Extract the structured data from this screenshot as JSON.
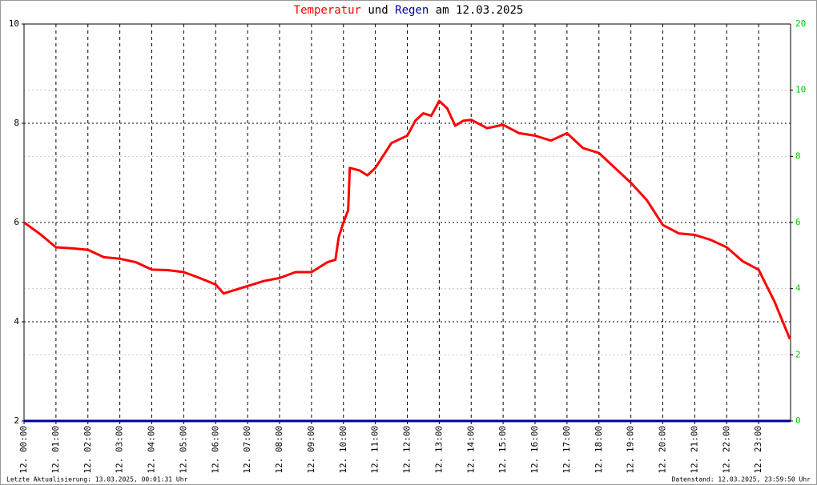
{
  "chart_data": {
    "type": "line",
    "title_parts": [
      "und",
      "am 12.03.2025"
    ],
    "footer_left": "Letzte Aktualisierung: 13.03.2025, 00:01:31 Uhr",
    "footer_right": "Datenstand: 12.03.2025, 23:59:50 Uhr",
    "xlim": [
      0,
      24
    ],
    "xticks": [
      {
        "value": 0,
        "label": "12. 00:00"
      },
      {
        "value": 1,
        "label": "12. 01:00"
      },
      {
        "value": 2,
        "label": "12. 02:00"
      },
      {
        "value": 3,
        "label": "12. 03:00"
      },
      {
        "value": 4,
        "label": "12. 04:00"
      },
      {
        "value": 5,
        "label": "12. 05:00"
      },
      {
        "value": 6,
        "label": "12. 06:00"
      },
      {
        "value": 7,
        "label": "12. 07:00"
      },
      {
        "value": 8,
        "label": "12. 08:00"
      },
      {
        "value": 9,
        "label": "12. 09:00"
      },
      {
        "value": 10,
        "label": "12. 10:00"
      },
      {
        "value": 11,
        "label": "12. 11:00"
      },
      {
        "value": 12,
        "label": "12. 12:00"
      },
      {
        "value": 13,
        "label": "12. 13:00"
      },
      {
        "value": 14,
        "label": "12. 14:00"
      },
      {
        "value": 15,
        "label": "12. 15:00"
      },
      {
        "value": 16,
        "label": "12. 16:00"
      },
      {
        "value": 17,
        "label": "12. 17:00"
      },
      {
        "value": 18,
        "label": "12. 18:00"
      },
      {
        "value": 19,
        "label": "12. 19:00"
      },
      {
        "value": 20,
        "label": "12. 20:00"
      },
      {
        "value": 21,
        "label": "12. 21:00"
      },
      {
        "value": 22,
        "label": "12. 22:00"
      },
      {
        "value": 23,
        "label": "12. 23:00"
      }
    ],
    "ylim": [
      2,
      10
    ],
    "yticks": [
      2,
      4,
      6,
      8,
      10
    ],
    "y2lim": [
      0,
      12
    ],
    "y2ticks": [
      0,
      2,
      4,
      6,
      8,
      10
    ],
    "y2_top_label": "20",
    "grid": true,
    "series": [
      {
        "name": "Temperatur",
        "color": "#ff0000",
        "x": [
          0,
          0.5,
          1,
          1.5,
          2,
          2.5,
          3,
          3.5,
          4,
          4.5,
          5,
          5.5,
          6,
          6.25,
          6.5,
          7,
          7.5,
          8,
          8.5,
          9,
          9.5,
          9.75,
          9.85,
          10,
          10.15,
          10.2,
          10.5,
          10.75,
          11,
          11.5,
          12,
          12.25,
          12.5,
          12.75,
          13,
          13.25,
          13.5,
          13.75,
          14,
          14.5,
          15,
          15.5,
          16,
          16.5,
          17,
          17.5,
          18,
          18.5,
          19,
          19.5,
          20,
          20.5,
          21,
          21.5,
          22,
          22.5,
          23,
          23.5,
          23.98
        ],
        "values": [
          6.0,
          5.77,
          5.5,
          5.48,
          5.45,
          5.3,
          5.27,
          5.2,
          5.05,
          5.04,
          5.0,
          4.88,
          4.75,
          4.57,
          4.62,
          4.72,
          4.82,
          4.88,
          5.0,
          5.0,
          5.2,
          5.25,
          5.7,
          6.0,
          6.25,
          7.1,
          7.05,
          6.95,
          7.1,
          7.6,
          7.75,
          8.05,
          8.2,
          8.15,
          8.45,
          8.3,
          7.95,
          8.05,
          8.07,
          7.9,
          7.97,
          7.8,
          7.75,
          7.65,
          7.8,
          7.5,
          7.4,
          7.1,
          6.8,
          6.45,
          5.95,
          5.78,
          5.75,
          5.65,
          5.5,
          5.22,
          5.05,
          4.4,
          3.65
        ]
      },
      {
        "name": "Regen",
        "color": "#000099",
        "axis": "y2",
        "x": [
          0,
          24
        ],
        "values": [
          0,
          0
        ]
      }
    ]
  }
}
